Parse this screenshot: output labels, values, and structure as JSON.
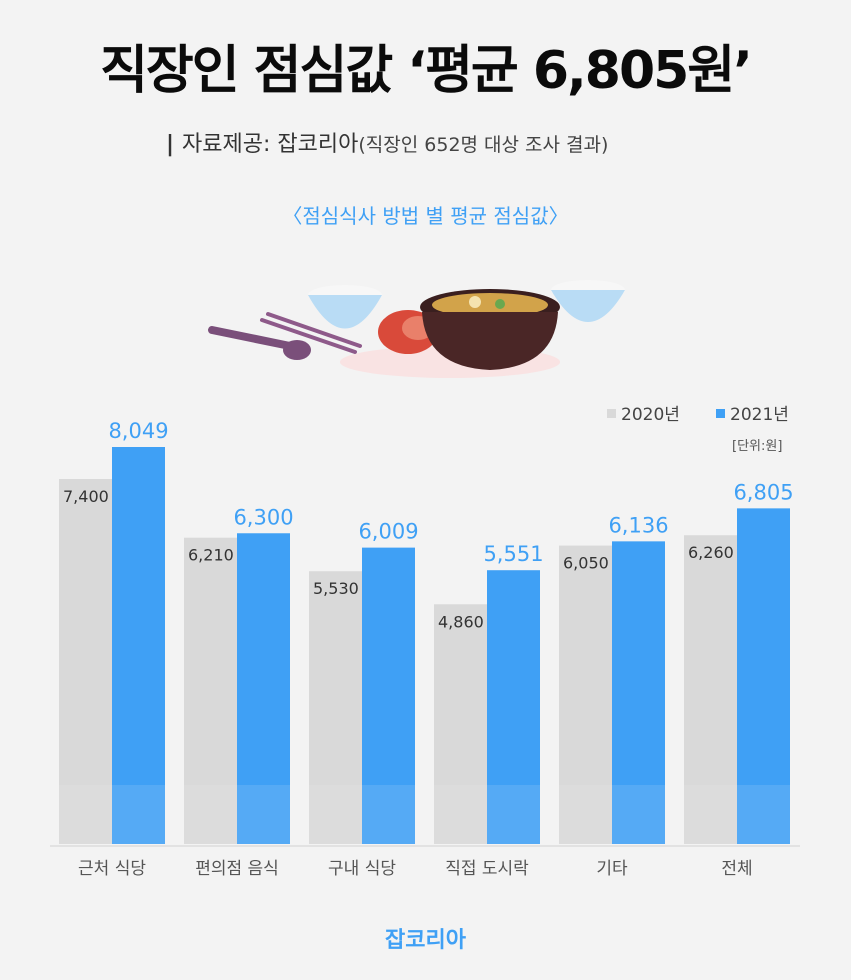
{
  "header": {
    "title": "직장인 점심값 ‘평균 6,805원’",
    "source_bar": "|",
    "source_label": "자료제공: 잡코리아",
    "source_note": "(직장인 652명 대상 조사 결과)",
    "subtitle": "〈점심식사 방법 별 평균 점심값〉"
  },
  "footer": {
    "brand": "잡코리아"
  },
  "colors": {
    "series_2020": "#d9d9d9",
    "series_2021": "#3fa0f5",
    "label_2021": "#3fa0f5",
    "label_2020": "#333333"
  },
  "chart_data": {
    "type": "bar",
    "categories": [
      "근처 식당",
      "편의점 음식",
      "구내 식당",
      "직접 도시락",
      "기타",
      "전체"
    ],
    "series": [
      {
        "name": "2020년",
        "values": [
          7400,
          6210,
          5530,
          4860,
          6050,
          6260
        ],
        "labels": [
          "7,400",
          "6,210",
          "5,530",
          "4,860",
          "6,050",
          "6,260"
        ]
      },
      {
        "name": "2021년",
        "values": [
          8049,
          6300,
          6009,
          5551,
          6136,
          6805
        ],
        "labels": [
          "8,049",
          "6,300",
          "6,009",
          "5,551",
          "6,136",
          "6,805"
        ]
      }
    ],
    "unit": "[단위:원]",
    "legend_position": "top-right",
    "ylim": [
      0,
      8049
    ],
    "grid": false
  }
}
